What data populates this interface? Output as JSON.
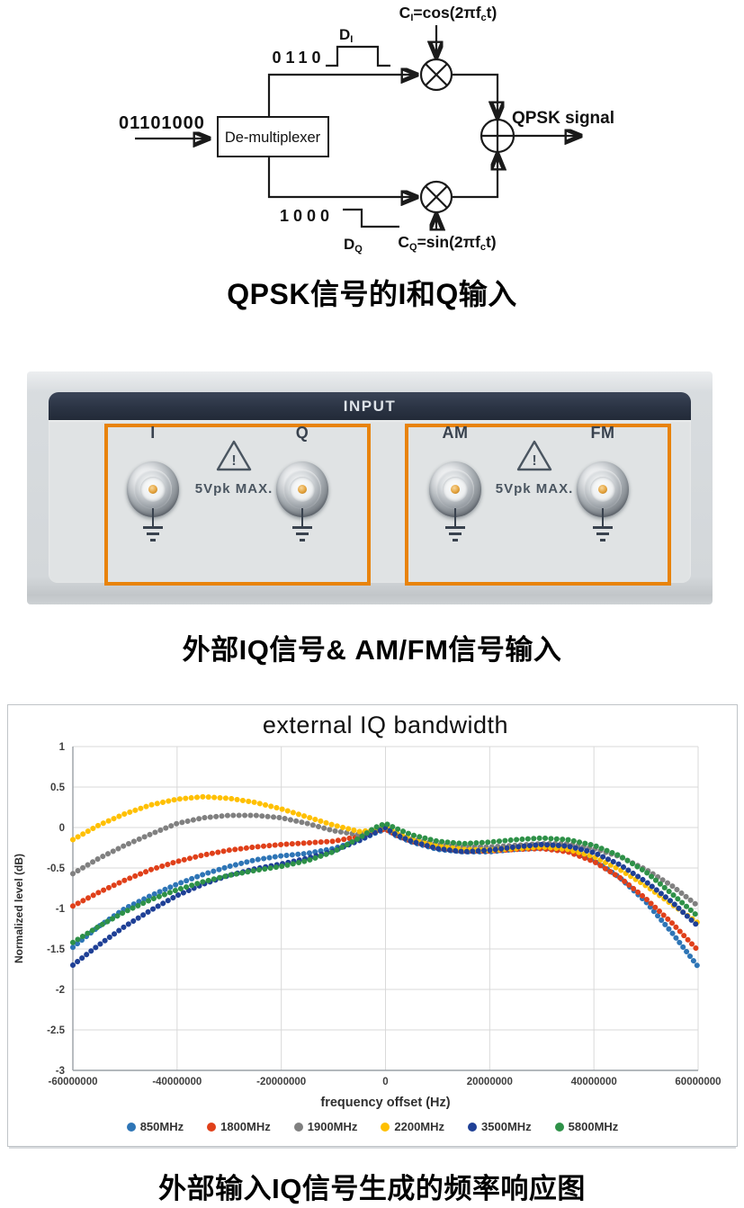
{
  "diagram": {
    "input_bits": "01101000",
    "demux_label": "De-multiplexer",
    "i_bits": "0110",
    "q_bits": "1000",
    "d_i": {
      "p1": "D",
      "p2": "I"
    },
    "d_q": {
      "p1": "D",
      "p2": "Q"
    },
    "carrier_i": {
      "p1": "C",
      "p2": "I",
      "p3": "=cos(2πf",
      "p4": "c",
      "p5": "t)"
    },
    "carrier_q": {
      "p1": "C",
      "p2": "Q",
      "p3": "=sin(2πf",
      "p4": "c",
      "p5": "t)"
    },
    "output_label": "QPSK signal"
  },
  "caption1": "QPSK信号的I和Q输入",
  "caption2": "外部IQ信号& AM/FM信号输入",
  "caption3": "外部输入IQ信号生成的频率响应图",
  "photo": {
    "header": "INPUT",
    "warning_mark": "!",
    "groups": [
      {
        "connectors": [
          "I",
          "Q"
        ],
        "warning": "5Vpk MAX."
      },
      {
        "connectors": [
          "AM",
          "FM"
        ],
        "warning": "5Vpk MAX."
      }
    ]
  },
  "chart_data": {
    "type": "line",
    "title": "external IQ bandwidth",
    "xlabel": "frequency offset (Hz)",
    "ylabel": "Normalized level (dB)",
    "xlim": [
      -60000000,
      60000000
    ],
    "ylim": [
      -3,
      1
    ],
    "grid": true,
    "legend_position": "bottom",
    "xtick_values_mhz": [
      -60,
      -40,
      -20,
      0,
      20,
      40,
      60
    ],
    "xtick_labels": [
      "-60000000",
      "-40000000",
      "-20000000",
      "0",
      "20000000",
      "40000000",
      "60000000"
    ],
    "ytick_labels": [
      "1",
      "0.5",
      "0",
      "-0.5",
      "-1",
      "-1.5",
      "-2",
      "-2.5",
      "-3"
    ],
    "x_mhz": [
      -60,
      -55,
      -50,
      -45,
      -40,
      -35,
      -30,
      -25,
      -20,
      -15,
      -10,
      -5,
      -2,
      0,
      2,
      5,
      10,
      15,
      20,
      25,
      30,
      35,
      40,
      45,
      50,
      55,
      60
    ],
    "series": [
      {
        "name": "850MHz",
        "color": "#2e75b6",
        "values": [
          -1.48,
          -1.22,
          -1.0,
          -0.84,
          -0.7,
          -0.58,
          -0.48,
          -0.4,
          -0.35,
          -0.32,
          -0.26,
          -0.16,
          -0.07,
          -0.02,
          -0.1,
          -0.18,
          -0.27,
          -0.3,
          -0.3,
          -0.27,
          -0.25,
          -0.28,
          -0.4,
          -0.62,
          -0.92,
          -1.3,
          -1.72
        ]
      },
      {
        "name": "1800MHz",
        "color": "#e0401a",
        "values": [
          -0.97,
          -0.8,
          -0.65,
          -0.52,
          -0.42,
          -0.34,
          -0.28,
          -0.24,
          -0.21,
          -0.19,
          -0.17,
          -0.11,
          -0.04,
          -0.02,
          -0.09,
          -0.17,
          -0.25,
          -0.29,
          -0.29,
          -0.27,
          -0.26,
          -0.3,
          -0.42,
          -0.62,
          -0.88,
          -1.18,
          -1.52
        ]
      },
      {
        "name": "1900MHz",
        "color": "#808080",
        "values": [
          -0.57,
          -0.38,
          -0.22,
          -0.08,
          0.05,
          0.12,
          0.15,
          0.15,
          0.12,
          0.05,
          -0.04,
          -0.09,
          -0.04,
          0.0,
          -0.07,
          -0.14,
          -0.21,
          -0.24,
          -0.24,
          -0.22,
          -0.2,
          -0.2,
          -0.26,
          -0.36,
          -0.52,
          -0.72,
          -0.97
        ]
      },
      {
        "name": "2200MHz",
        "color": "#ffc000",
        "values": [
          -0.15,
          0.03,
          0.17,
          0.28,
          0.35,
          0.38,
          0.36,
          0.31,
          0.23,
          0.13,
          0.03,
          -0.05,
          -0.03,
          0.01,
          -0.07,
          -0.15,
          -0.23,
          -0.27,
          -0.28,
          -0.26,
          -0.24,
          -0.27,
          -0.36,
          -0.52,
          -0.72,
          -0.95,
          -1.18
        ]
      },
      {
        "name": "3500MHz",
        "color": "#1f4096",
        "values": [
          -1.7,
          -1.45,
          -1.22,
          -1.02,
          -0.84,
          -0.7,
          -0.59,
          -0.51,
          -0.45,
          -0.38,
          -0.29,
          -0.16,
          -0.06,
          0.0,
          -0.09,
          -0.17,
          -0.26,
          -0.3,
          -0.28,
          -0.24,
          -0.21,
          -0.23,
          -0.31,
          -0.46,
          -0.67,
          -0.92,
          -1.22
        ]
      },
      {
        "name": "5800MHz",
        "color": "#2e9148",
        "values": [
          -1.42,
          -1.22,
          -1.04,
          -0.89,
          -0.77,
          -0.67,
          -0.59,
          -0.53,
          -0.48,
          -0.41,
          -0.3,
          -0.13,
          0.0,
          0.05,
          -0.01,
          -0.09,
          -0.17,
          -0.2,
          -0.18,
          -0.15,
          -0.13,
          -0.15,
          -0.22,
          -0.35,
          -0.55,
          -0.82,
          -1.1
        ]
      }
    ]
  }
}
